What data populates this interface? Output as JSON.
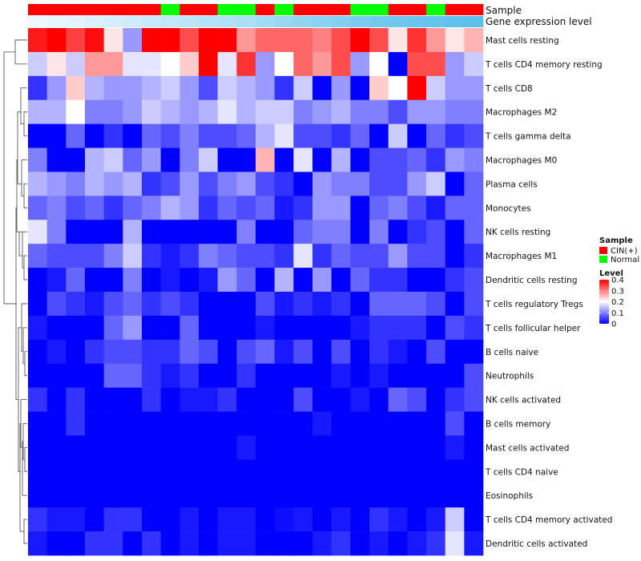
{
  "chart_data": {
    "type": "heatmap",
    "title": "",
    "annotation_labels": {
      "sample": "Sample",
      "gene": "Gene expression level"
    },
    "colors": {
      "low": "#0000ff",
      "mid": "#ffffff",
      "high": "#ff0000",
      "cin": "#ff0000",
      "normal": "#00ff00",
      "gene_low": "#f7fbff",
      "gene_high": "#5bc0eb"
    },
    "range": [
      0,
      0.4
    ],
    "legend": {
      "sample_title": "Sample",
      "sample_entries": [
        "CIN(+)",
        "Normal"
      ],
      "level_title": "Level",
      "level_ticks": [
        "0.4",
        "0.3",
        "0.2",
        "0.1",
        "0"
      ],
      "level_tick_values": [
        0.4,
        0.3,
        0.2,
        0.1,
        0
      ],
      "placement": "right"
    },
    "sample_groups": [
      "CIN(+)",
      "CIN(+)",
      "CIN(+)",
      "CIN(+)",
      "CIN(+)",
      "CIN(+)",
      "CIN(+)",
      "Normal",
      "CIN(+)",
      "CIN(+)",
      "Normal",
      "Normal",
      "CIN(+)",
      "Normal",
      "CIN(+)",
      "CIN(+)",
      "CIN(+)",
      "Normal",
      "Normal",
      "CIN(+)",
      "CIN(+)",
      "Normal",
      "CIN(+)",
      "CIN(+)"
    ],
    "gene_expression_level": [
      0.05,
      0.1,
      0.14,
      0.18,
      0.22,
      0.26,
      0.3,
      0.34,
      0.38,
      0.42,
      0.46,
      0.5,
      0.55,
      0.6,
      0.65,
      0.7,
      0.75,
      0.8,
      0.85,
      0.88,
      0.91,
      0.94,
      0.97,
      1.0
    ],
    "rows": [
      "Mast cells resting",
      "T cells CD4 memory resting",
      "T cells CD8",
      "Macrophages M2",
      "T cells gamma delta",
      "Macrophages M0",
      "Plasma cells",
      "Monocytes",
      "NK cells resting",
      "Macrophages M1",
      "Dendritic cells resting",
      "T cells regulatory  Tregs",
      "T cells follicular helper",
      "B cells naive",
      "Neutrophils",
      "NK cells activated",
      "B cells memory",
      "Mast cells activated",
      "T cells CD4 naive",
      "Eosinophils",
      "T cells CD4 memory activated",
      "Dendritic cells activated"
    ],
    "values": [
      [
        0.38,
        0.4,
        0.35,
        0.39,
        0.22,
        0.12,
        0.4,
        0.4,
        0.34,
        0.4,
        0.4,
        0.28,
        0.32,
        0.32,
        0.32,
        0.3,
        0.34,
        0.4,
        0.34,
        0.22,
        0.36,
        0.28,
        0.22,
        0.26
      ],
      [
        0.16,
        0.22,
        0.16,
        0.28,
        0.28,
        0.18,
        0.18,
        0.2,
        0.24,
        0.4,
        0.18,
        0.36,
        0.12,
        0.2,
        0.32,
        0.28,
        0.34,
        0.12,
        0.2,
        0.0,
        0.34,
        0.34,
        0.12,
        0.16
      ],
      [
        0.04,
        0.12,
        0.24,
        0.14,
        0.12,
        0.12,
        0.14,
        0.16,
        0.12,
        0.06,
        0.16,
        0.14,
        0.12,
        0.04,
        0.16,
        0.0,
        0.12,
        0.0,
        0.24,
        0.2,
        0.4,
        0.16,
        0.12,
        0.12
      ],
      [
        0.14,
        0.14,
        0.2,
        0.1,
        0.1,
        0.12,
        0.16,
        0.14,
        0.12,
        0.14,
        0.18,
        0.14,
        0.16,
        0.16,
        0.1,
        0.12,
        0.14,
        0.1,
        0.1,
        0.06,
        0.12,
        0.12,
        0.1,
        0.1
      ],
      [
        0.0,
        0.0,
        0.08,
        0.0,
        0.04,
        0.0,
        0.08,
        0.06,
        0.1,
        0.06,
        0.06,
        0.08,
        0.14,
        0.18,
        0.06,
        0.06,
        0.04,
        0.08,
        0.0,
        0.16,
        0.0,
        0.08,
        0.04,
        0.06
      ],
      [
        0.1,
        0.0,
        0.0,
        0.14,
        0.16,
        0.08,
        0.12,
        0.0,
        0.1,
        0.16,
        0.0,
        0.0,
        0.26,
        0.0,
        0.18,
        0.0,
        0.14,
        0.0,
        0.06,
        0.06,
        0.08,
        0.04,
        0.12,
        0.1
      ],
      [
        0.14,
        0.12,
        0.1,
        0.14,
        0.12,
        0.14,
        0.04,
        0.06,
        0.12,
        0.06,
        0.1,
        0.12,
        0.06,
        0.04,
        0.0,
        0.12,
        0.1,
        0.1,
        0.06,
        0.06,
        0.12,
        0.16,
        0.0,
        0.08
      ],
      [
        0.08,
        0.1,
        0.06,
        0.08,
        0.04,
        0.08,
        0.1,
        0.14,
        0.12,
        0.04,
        0.08,
        0.06,
        0.08,
        0.02,
        0.04,
        0.12,
        0.12,
        0.0,
        0.08,
        0.1,
        0.06,
        0.02,
        0.08,
        0.08
      ],
      [
        0.18,
        0.1,
        0.0,
        0.0,
        0.0,
        0.14,
        0.0,
        0.0,
        0.0,
        0.0,
        0.0,
        0.1,
        0.0,
        0.0,
        0.08,
        0.1,
        0.1,
        0.0,
        0.1,
        0.0,
        0.04,
        0.06,
        0.0,
        0.08
      ],
      [
        0.08,
        0.06,
        0.06,
        0.06,
        0.1,
        0.16,
        0.04,
        0.02,
        0.04,
        0.1,
        0.08,
        0.06,
        0.06,
        0.04,
        0.18,
        0.04,
        0.08,
        0.06,
        0.06,
        0.12,
        0.06,
        0.06,
        0.0,
        0.04
      ],
      [
        0.0,
        0.02,
        0.08,
        0.0,
        0.0,
        0.1,
        0.0,
        0.02,
        0.0,
        0.02,
        0.12,
        0.08,
        0.0,
        0.14,
        0.0,
        0.12,
        0.0,
        0.08,
        0.04,
        0.04,
        0.0,
        0.0,
        0.04,
        0.06
      ],
      [
        0.0,
        0.06,
        0.04,
        0.02,
        0.06,
        0.08,
        0.04,
        0.06,
        0.04,
        0.0,
        0.0,
        0.0,
        0.06,
        0.02,
        0.04,
        0.02,
        0.04,
        0.0,
        0.08,
        0.08,
        0.08,
        0.06,
        0.0,
        0.06
      ],
      [
        0.02,
        0.0,
        0.0,
        0.0,
        0.08,
        0.12,
        0.0,
        0.0,
        0.08,
        0.0,
        0.0,
        0.0,
        0.02,
        0.0,
        0.0,
        0.0,
        0.0,
        0.02,
        0.04,
        0.04,
        0.04,
        0.0,
        0.06,
        0.04
      ],
      [
        0.0,
        0.02,
        0.0,
        0.04,
        0.06,
        0.06,
        0.04,
        0.04,
        0.08,
        0.06,
        0.0,
        0.06,
        0.08,
        0.02,
        0.06,
        0.0,
        0.06,
        0.0,
        0.04,
        0.02,
        0.0,
        0.06,
        0.0,
        0.0
      ],
      [
        0.0,
        0.0,
        0.0,
        0.0,
        0.08,
        0.08,
        0.04,
        0.02,
        0.04,
        0.0,
        0.0,
        0.04,
        0.0,
        0.0,
        0.0,
        0.0,
        0.02,
        0.0,
        0.02,
        0.0,
        0.0,
        0.0,
        0.0,
        0.06
      ],
      [
        0.04,
        0.0,
        0.04,
        0.0,
        0.0,
        0.0,
        0.04,
        0.0,
        0.02,
        0.02,
        0.04,
        0.0,
        0.0,
        0.0,
        0.06,
        0.0,
        0.0,
        0.02,
        0.0,
        0.08,
        0.06,
        0.0,
        0.04,
        0.06
      ],
      [
        0.0,
        0.0,
        0.04,
        0.0,
        0.0,
        0.0,
        0.0,
        0.0,
        0.0,
        0.0,
        0.0,
        0.0,
        0.0,
        0.0,
        0.0,
        0.02,
        0.0,
        0.0,
        0.0,
        0.0,
        0.0,
        0.0,
        0.06,
        0.0
      ],
      [
        0.0,
        0.0,
        0.0,
        0.0,
        0.0,
        0.0,
        0.0,
        0.0,
        0.0,
        0.0,
        0.0,
        0.02,
        0.0,
        0.0,
        0.0,
        0.0,
        0.0,
        0.0,
        0.0,
        0.0,
        0.0,
        0.0,
        0.02,
        0.0
      ],
      [
        0.0,
        0.0,
        0.0,
        0.0,
        0.0,
        0.0,
        0.0,
        0.0,
        0.0,
        0.0,
        0.0,
        0.0,
        0.0,
        0.0,
        0.0,
        0.0,
        0.0,
        0.0,
        0.0,
        0.0,
        0.0,
        0.0,
        0.0,
        0.0
      ],
      [
        0.0,
        0.0,
        0.0,
        0.0,
        0.0,
        0.0,
        0.0,
        0.0,
        0.0,
        0.0,
        0.0,
        0.0,
        0.0,
        0.0,
        0.0,
        0.0,
        0.0,
        0.0,
        0.0,
        0.0,
        0.0,
        0.0,
        0.0,
        0.0
      ],
      [
        0.04,
        0.02,
        0.02,
        0.0,
        0.04,
        0.04,
        0.0,
        0.0,
        0.02,
        0.0,
        0.02,
        0.02,
        0.0,
        0.01,
        0.02,
        0.0,
        0.02,
        0.0,
        0.04,
        0.02,
        0.0,
        0.02,
        0.16,
        0.0
      ],
      [
        0.02,
        0.0,
        0.0,
        0.04,
        0.04,
        0.0,
        0.04,
        0.0,
        0.02,
        0.0,
        0.02,
        0.02,
        0.0,
        0.0,
        0.0,
        0.02,
        0.04,
        0.0,
        0.02,
        0.0,
        0.02,
        0.04,
        0.18,
        0.02
      ]
    ]
  }
}
